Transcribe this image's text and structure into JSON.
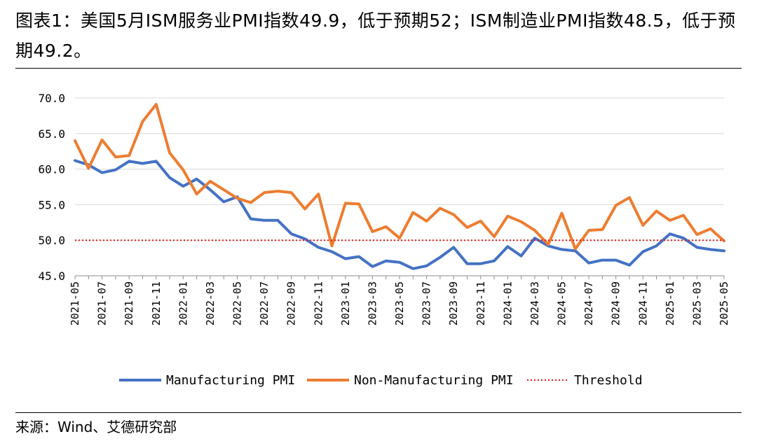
{
  "figure": {
    "title": "图表1：美国5月ISM服务业PMI指数49.9，低于预期52；ISM制造业PMI指数48.5，低于预期49.2。",
    "source": "来源：Wind、艾德研究部"
  },
  "chart_data": {
    "type": "line",
    "title": "",
    "xlabel": "",
    "ylabel": "",
    "ylim": [
      45,
      70
    ],
    "yticks": [
      "70.0",
      "65.0",
      "60.0",
      "55.0",
      "50.0",
      "45.0"
    ],
    "grid": true,
    "legend_position": "bottom",
    "x": [
      "2021-05",
      "2021-06",
      "2021-07",
      "2021-08",
      "2021-09",
      "2021-10",
      "2021-11",
      "2021-12",
      "2022-01",
      "2022-02",
      "2022-03",
      "2022-04",
      "2022-05",
      "2022-06",
      "2022-07",
      "2022-08",
      "2022-09",
      "2022-10",
      "2022-11",
      "2022-12",
      "2023-01",
      "2023-02",
      "2023-03",
      "2023-04",
      "2023-05",
      "2023-06",
      "2023-07",
      "2023-08",
      "2023-09",
      "2023-10",
      "2023-11",
      "2023-12",
      "2024-01",
      "2024-02",
      "2024-03",
      "2024-04",
      "2024-05",
      "2024-06",
      "2024-07",
      "2024-08",
      "2024-09",
      "2024-10",
      "2024-11",
      "2024-12",
      "2025-01",
      "2025-02",
      "2025-03",
      "2025-04",
      "2025-05"
    ],
    "x_tick_labels": [
      "2021-05",
      "2021-07",
      "2021-09",
      "2021-11",
      "2022-01",
      "2022-03",
      "2022-05",
      "2022-07",
      "2022-09",
      "2022-11",
      "2023-01",
      "2023-03",
      "2023-05",
      "2023-07",
      "2023-09",
      "2023-11",
      "2024-01",
      "2024-03",
      "2024-05",
      "2024-07",
      "2024-09",
      "2024-11",
      "2025-01",
      "2025-03",
      "2025-05"
    ],
    "series": [
      {
        "name": "Manufacturing PMI",
        "color": "#4472C4",
        "style": "solid",
        "values": [
          61.2,
          60.6,
          59.5,
          59.9,
          61.1,
          60.8,
          61.1,
          58.8,
          57.6,
          58.6,
          57.1,
          55.4,
          56.1,
          53.0,
          52.8,
          52.8,
          50.9,
          50.2,
          49.0,
          48.4,
          47.4,
          47.7,
          46.3,
          47.1,
          46.9,
          46.0,
          46.4,
          47.6,
          49.0,
          46.7,
          46.7,
          47.1,
          49.1,
          47.8,
          50.3,
          49.2,
          48.7,
          48.5,
          46.8,
          47.2,
          47.2,
          46.5,
          48.4,
          49.2,
          50.9,
          50.3,
          49.0,
          48.7,
          48.5
        ]
      },
      {
        "name": "Non-Manufacturing PMI",
        "color": "#ED7D31",
        "style": "solid",
        "values": [
          64.0,
          60.1,
          64.1,
          61.7,
          61.9,
          66.7,
          69.1,
          62.3,
          59.9,
          56.5,
          58.3,
          57.1,
          55.9,
          55.3,
          56.7,
          56.9,
          56.7,
          54.4,
          56.5,
          49.2,
          55.2,
          55.1,
          51.2,
          51.9,
          50.3,
          53.9,
          52.7,
          54.5,
          53.6,
          51.8,
          52.7,
          50.5,
          53.4,
          52.6,
          51.4,
          49.4,
          53.8,
          48.8,
          51.4,
          51.5,
          54.9,
          56.0,
          52.1,
          54.1,
          52.8,
          53.5,
          50.8,
          51.6,
          49.9
        ]
      },
      {
        "name": "Threshold",
        "color": "#E0181B",
        "style": "dotted",
        "values": [
          50,
          50,
          50,
          50,
          50,
          50,
          50,
          50,
          50,
          50,
          50,
          50,
          50,
          50,
          50,
          50,
          50,
          50,
          50,
          50,
          50,
          50,
          50,
          50,
          50,
          50,
          50,
          50,
          50,
          50,
          50,
          50,
          50,
          50,
          50,
          50,
          50,
          50,
          50,
          50,
          50,
          50,
          50,
          50,
          50,
          50,
          50,
          50,
          50
        ]
      }
    ]
  }
}
